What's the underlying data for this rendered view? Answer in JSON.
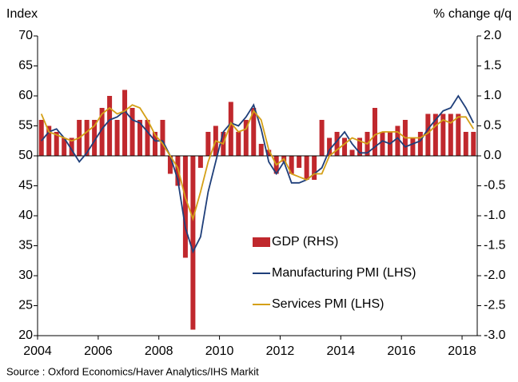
{
  "chart_data": {
    "type": "combo",
    "y_label": "Index",
    "y2_label": "% change q/q",
    "source": "Source : Oxford Economics/Haver Analytics/IHS Markit",
    "x": [
      2004.125,
      2004.375,
      2004.625,
      2004.875,
      2005.125,
      2005.375,
      2005.625,
      2005.875,
      2006.125,
      2006.375,
      2006.625,
      2006.875,
      2007.125,
      2007.375,
      2007.625,
      2007.875,
      2008.125,
      2008.375,
      2008.625,
      2008.875,
      2009.125,
      2009.375,
      2009.625,
      2009.875,
      2010.125,
      2010.375,
      2010.625,
      2010.875,
      2011.125,
      2011.375,
      2011.625,
      2011.875,
      2012.125,
      2012.375,
      2012.625,
      2012.875,
      2013.125,
      2013.375,
      2013.625,
      2013.875,
      2014.125,
      2014.375,
      2014.625,
      2014.875,
      2015.125,
      2015.375,
      2015.625,
      2015.875,
      2016.125,
      2016.375,
      2016.625,
      2016.875,
      2017.125,
      2017.375,
      2017.625,
      2017.875,
      2018.125,
      2018.375
    ],
    "series": [
      {
        "name": "GDP (RHS)",
        "type": "bar",
        "axis": "y2",
        "color": "#c0282d",
        "values": [
          0.6,
          0.5,
          0.4,
          0.3,
          0.3,
          0.6,
          0.6,
          0.6,
          0.8,
          1.0,
          0.6,
          1.1,
          0.8,
          0.6,
          0.6,
          0.4,
          0.6,
          -0.3,
          -0.5,
          -1.7,
          -2.9,
          -0.2,
          0.4,
          0.5,
          0.4,
          0.9,
          0.4,
          0.6,
          0.8,
          0.2,
          0.1,
          -0.3,
          -0.1,
          -0.3,
          -0.2,
          -0.4,
          -0.4,
          0.6,
          0.3,
          0.4,
          0.3,
          0.1,
          0.3,
          0.4,
          0.8,
          0.4,
          0.4,
          0.5,
          0.6,
          0.3,
          0.4,
          0.7,
          0.7,
          0.7,
          0.7,
          0.7,
          0.4,
          0.4
        ]
      },
      {
        "name": "Manufacturing PMI (LHS)",
        "type": "line",
        "axis": "y",
        "color": "#1f3f7a",
        "values": [
          52.5,
          54,
          54.5,
          53,
          51,
          49,
          50.5,
          52.5,
          54.5,
          56,
          56.5,
          57.5,
          56,
          55.5,
          54,
          52.5,
          52.5,
          50,
          46,
          38,
          34,
          36.5,
          44,
          49,
          54,
          55.5,
          55,
          56.5,
          58.5,
          54.5,
          49,
          47,
          49,
          45.5,
          45.5,
          46,
          47,
          48,
          51,
          52.5,
          54,
          52,
          50.5,
          50.5,
          51.5,
          52.5,
          52,
          53,
          51.5,
          52,
          52.5,
          54.5,
          56,
          57.5,
          58,
          60,
          58,
          55.5
        ]
      },
      {
        "name": "Services PMI (LHS)",
        "type": "line",
        "axis": "y",
        "color": "#d4a017",
        "values": [
          57,
          54,
          53.5,
          53,
          52.5,
          53,
          54,
          55,
          57,
          58,
          57,
          57.5,
          58.5,
          58,
          56,
          53.5,
          52,
          50,
          48,
          43,
          39.5,
          44,
          49,
          52.5,
          52,
          55.5,
          54,
          54.5,
          57.5,
          56,
          51,
          48.5,
          49.5,
          47,
          46.5,
          46,
          47,
          47,
          50,
          51,
          52,
          53,
          52.5,
          52,
          53.5,
          54,
          54,
          54,
          53,
          53,
          53,
          53.8,
          55,
          56,
          55.5,
          56.5,
          56.5,
          54.5
        ]
      }
    ],
    "xlim": [
      2004,
      2018.5
    ],
    "xticks": [
      2004,
      2006,
      2008,
      2010,
      2012,
      2014,
      2016,
      2018
    ],
    "ylim": [
      20,
      70
    ],
    "yticks": [
      20,
      25,
      30,
      35,
      40,
      45,
      50,
      55,
      60,
      65,
      70
    ],
    "y2lim": [
      -3,
      2
    ],
    "y2ticks": [
      {
        "value": -3,
        "label": "-3.0"
      },
      -2.5,
      {
        "value": -2,
        "label": "-2.0"
      },
      -1.5,
      {
        "value": -1,
        "label": "-1.0"
      },
      -0.5,
      {
        "value": 0,
        "label": "0.0"
      },
      0.5,
      {
        "value": 1,
        "label": "1.0"
      },
      1.5,
      {
        "value": 2,
        "label": "2.0"
      }
    ],
    "legend": "bottom-center"
  }
}
